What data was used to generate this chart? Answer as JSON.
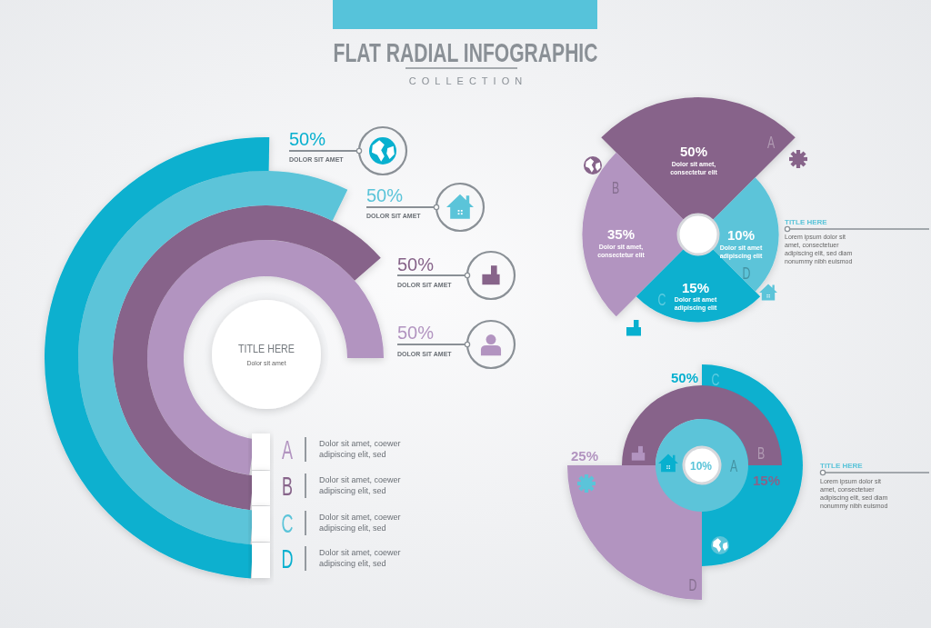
{
  "chart_data": [
    {
      "type": "other",
      "title": "FLAT RADIAL INFOGRAPHIC",
      "subtitle": "COLLECTION"
    },
    {
      "type": "other",
      "title": "TITLE HERE",
      "subtitle": "Dolor sit amet",
      "categories": [
        "A",
        "B",
        "C",
        "D"
      ],
      "colors": [
        "#b294c0",
        "#87648a",
        "#5bc4d9",
        "#08b0cf"
      ],
      "value_labels": [
        "50%",
        "50%",
        "50%",
        "50%"
      ],
      "annotations": [
        "DOLOR SIT AMET",
        "DOLOR SIT AMET",
        "DOLOR SIT AMET",
        "DOLOR SIT AMET",
        "Dolor sit amet, coewer\nadipiscing elit, sed",
        "Dolor sit amet, coewer\nadipiscing elit, sed",
        "Dolor sit amet, coewer\nadipiscing elit, sed",
        "Dolor sit amet, coewer\nadipiscing elit, sed"
      ]
    },
    {
      "type": "other",
      "title": "TITLE HERE",
      "categories": [
        "A",
        "B",
        "C",
        "D"
      ],
      "values": [
        50,
        35,
        15,
        10
      ],
      "colors": [
        "#87648a",
        "#b294c0",
        "#08b0cf",
        "#5bc4d9"
      ],
      "value_labels": [
        "50%",
        "35%",
        "15%",
        "10%"
      ],
      "annotations": [
        "Dolor sit amet,\nconsectetur elit",
        "Dolor sit amet,\nconsectetur elit",
        "Dolor sit amet\nadipiscing elit",
        "Dolor sit amet\nadipiscing elit",
        "Lorem ipsum dolor sit\namet, consectetuer\nadipiscing elit, sed diam\nnonummy nibh euismod"
      ]
    },
    {
      "type": "other",
      "title": "TITLE HERE",
      "categories": [
        "A",
        "B",
        "C",
        "D"
      ],
      "colors": [
        "#5bc4d9",
        "#87648a",
        "#08b0cf",
        "#b294c0"
      ],
      "value_labels": [
        "10%",
        "15%",
        "50%",
        "25%"
      ],
      "annotations": [
        "Lorem ipsum dolor sit\namet, consectetuer\nadipiscing elit, sed diam\nnonummy nibh euismod"
      ]
    }
  ]
}
